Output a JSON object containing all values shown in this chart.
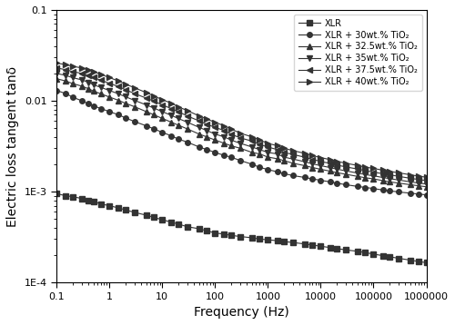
{
  "title": "",
  "xlabel": "Frequency (Hz)",
  "ylabel": "Electric loss tangent tanδ",
  "xlim": [
    0.1,
    1000000
  ],
  "ylim": [
    0.0001,
    0.1
  ],
  "legend_entries": [
    "XLR",
    "XLR + 30wt.% TiO₂",
    "XLR + 32.5wt.% TiO₂",
    "XLR + 35wt.% TiO₂",
    "XLR + 37.5wt.% TiO₂",
    "XLR + 40wt.% TiO₂"
  ],
  "markers": [
    "s",
    "o",
    "^",
    "v",
    "<",
    ">"
  ],
  "line_color": "#555555",
  "marker_color": "#333333",
  "background_color": "#ffffff",
  "series": {
    "XLR": {
      "freq": [
        0.1,
        0.15,
        0.2,
        0.3,
        0.4,
        0.5,
        0.7,
        1.0,
        1.5,
        2.0,
        3.0,
        5.0,
        7.0,
        10,
        15,
        20,
        30,
        50,
        70,
        100,
        150,
        200,
        300,
        500,
        700,
        1000,
        1500,
        2000,
        3000,
        5000,
        7000,
        10000,
        15000,
        20000,
        30000,
        50000,
        70000,
        100000,
        150000,
        200000,
        300000,
        500000,
        700000,
        1000000
      ],
      "tand": [
        0.00095,
        0.0009,
        0.00088,
        0.00084,
        0.0008,
        0.00078,
        0.00073,
        0.0007,
        0.00066,
        0.00063,
        0.00059,
        0.00055,
        0.00052,
        0.00049,
        0.00046,
        0.00044,
        0.00041,
        0.00039,
        0.00037,
        0.00035,
        0.00034,
        0.00033,
        0.00032,
        0.00031,
        0.0003,
        0.000295,
        0.000288,
        0.000282,
        0.000275,
        0.000265,
        0.000258,
        0.00025,
        0.000242,
        0.000236,
        0.000228,
        0.00022,
        0.000213,
        0.000205,
        0.000197,
        0.000192,
        0.000184,
        0.000176,
        0.00017,
        0.000165
      ]
    },
    "XLR30": {
      "freq": [
        0.1,
        0.15,
        0.2,
        0.3,
        0.4,
        0.5,
        0.7,
        1.0,
        1.5,
        2.0,
        3.0,
        5.0,
        7.0,
        10,
        15,
        20,
        30,
        50,
        70,
        100,
        150,
        200,
        300,
        500,
        700,
        1000,
        1500,
        2000,
        3000,
        5000,
        7000,
        10000,
        15000,
        20000,
        30000,
        50000,
        70000,
        100000,
        150000,
        200000,
        300000,
        500000,
        700000,
        1000000
      ],
      "tand": [
        0.013,
        0.012,
        0.011,
        0.01,
        0.0093,
        0.0088,
        0.0082,
        0.0076,
        0.007,
        0.0065,
        0.0059,
        0.0053,
        0.0049,
        0.0045,
        0.0041,
        0.0038,
        0.0035,
        0.0031,
        0.0029,
        0.0027,
        0.0025,
        0.0024,
        0.0022,
        0.002,
        0.00185,
        0.00175,
        0.00165,
        0.00158,
        0.0015,
        0.00143,
        0.00138,
        0.00133,
        0.00128,
        0.00124,
        0.00119,
        0.00114,
        0.00111,
        0.00108,
        0.00104,
        0.00102,
        0.00099,
        0.00096,
        0.00094,
        0.00092
      ]
    },
    "XLR32p5": {
      "freq": [
        0.1,
        0.15,
        0.2,
        0.3,
        0.4,
        0.5,
        0.7,
        1.0,
        1.5,
        2.0,
        3.0,
        5.0,
        7.0,
        10,
        15,
        20,
        30,
        50,
        70,
        100,
        150,
        200,
        300,
        500,
        700,
        1000,
        1500,
        2000,
        3000,
        5000,
        7000,
        10000,
        15000,
        20000,
        30000,
        50000,
        70000,
        100000,
        150000,
        200000,
        300000,
        500000,
        700000,
        1000000
      ],
      "tand": [
        0.0175,
        0.0165,
        0.0155,
        0.0145,
        0.0136,
        0.0128,
        0.0119,
        0.011,
        0.0101,
        0.0094,
        0.0086,
        0.0076,
        0.007,
        0.0064,
        0.0058,
        0.0054,
        0.0049,
        0.0043,
        0.004,
        0.0037,
        0.0034,
        0.0032,
        0.003,
        0.0027,
        0.0026,
        0.0024,
        0.0023,
        0.0022,
        0.00205,
        0.00193,
        0.00184,
        0.00176,
        0.00168,
        0.00162,
        0.00155,
        0.00147,
        0.00142,
        0.00138,
        0.00132,
        0.00128,
        0.00124,
        0.00119,
        0.00116,
        0.00113
      ]
    },
    "XLR35": {
      "freq": [
        0.1,
        0.15,
        0.2,
        0.3,
        0.4,
        0.5,
        0.7,
        1.0,
        1.5,
        2.0,
        3.0,
        5.0,
        7.0,
        10,
        15,
        20,
        30,
        50,
        70,
        100,
        150,
        200,
        300,
        500,
        700,
        1000,
        1500,
        2000,
        3000,
        5000,
        7000,
        10000,
        15000,
        20000,
        30000,
        50000,
        70000,
        100000,
        150000,
        200000,
        300000,
        500000,
        700000,
        1000000
      ],
      "tand": [
        0.02,
        0.019,
        0.018,
        0.017,
        0.016,
        0.015,
        0.014,
        0.013,
        0.0119,
        0.0111,
        0.0101,
        0.009,
        0.0083,
        0.0076,
        0.0069,
        0.0064,
        0.0058,
        0.0051,
        0.0047,
        0.0043,
        0.004,
        0.0037,
        0.0034,
        0.0031,
        0.0029,
        0.0027,
        0.0026,
        0.0024,
        0.00228,
        0.00213,
        0.00202,
        0.00193,
        0.00184,
        0.00177,
        0.00169,
        0.0016,
        0.00154,
        0.00149,
        0.00143,
        0.00139,
        0.00134,
        0.00128,
        0.00124,
        0.00121
      ]
    },
    "XLR37p5": {
      "freq": [
        0.1,
        0.15,
        0.2,
        0.3,
        0.4,
        0.5,
        0.7,
        1.0,
        1.5,
        2.0,
        3.0,
        5.0,
        7.0,
        10,
        15,
        20,
        30,
        50,
        70,
        100,
        150,
        200,
        300,
        500,
        700,
        1000,
        1500,
        2000,
        3000,
        5000,
        7000,
        10000,
        15000,
        20000,
        30000,
        50000,
        70000,
        100000,
        150000,
        200000,
        300000,
        500000,
        700000,
        1000000
      ],
      "tand": [
        0.023,
        0.022,
        0.021,
        0.02,
        0.019,
        0.018,
        0.0168,
        0.0156,
        0.0143,
        0.0133,
        0.012,
        0.0107,
        0.0099,
        0.009,
        0.0082,
        0.0076,
        0.0068,
        0.006,
        0.0055,
        0.0051,
        0.0047,
        0.0043,
        0.0039,
        0.0036,
        0.0033,
        0.0031,
        0.0029,
        0.0027,
        0.00256,
        0.00239,
        0.00226,
        0.00215,
        0.00204,
        0.00196,
        0.00187,
        0.00177,
        0.0017,
        0.00164,
        0.00157,
        0.00153,
        0.00147,
        0.0014,
        0.00136,
        0.00132
      ]
    },
    "XLR40": {
      "freq": [
        0.1,
        0.15,
        0.2,
        0.3,
        0.4,
        0.5,
        0.7,
        1.0,
        1.5,
        2.0,
        3.0,
        5.0,
        7.0,
        10,
        15,
        20,
        30,
        50,
        70,
        100,
        150,
        200,
        300,
        500,
        700,
        1000,
        1500,
        2000,
        3000,
        5000,
        7000,
        10000,
        15000,
        20000,
        30000,
        50000,
        70000,
        100000,
        150000,
        200000,
        300000,
        500000,
        700000,
        1000000
      ],
      "tand": [
        0.026,
        0.025,
        0.024,
        0.023,
        0.022,
        0.021,
        0.0195,
        0.018,
        0.0165,
        0.0153,
        0.0139,
        0.0123,
        0.0113,
        0.0103,
        0.0094,
        0.0086,
        0.0078,
        0.0068,
        0.0063,
        0.0058,
        0.0053,
        0.0049,
        0.0044,
        0.004,
        0.0037,
        0.0034,
        0.0032,
        0.003,
        0.00283,
        0.00263,
        0.00249,
        0.00237,
        0.00225,
        0.00216,
        0.00205,
        0.00194,
        0.00186,
        0.0018,
        0.00172,
        0.00167,
        0.00161,
        0.00153,
        0.00148,
        0.00144
      ]
    }
  }
}
